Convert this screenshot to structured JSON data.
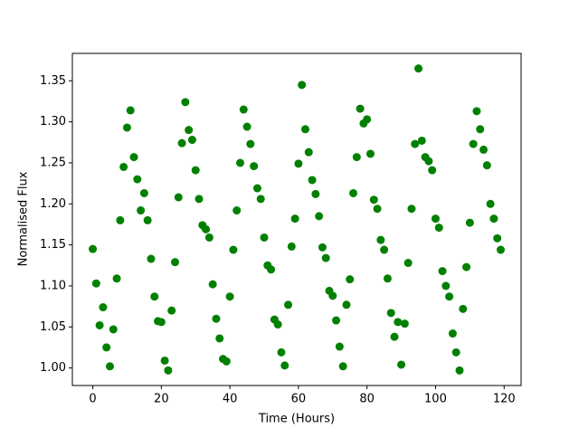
{
  "chart_data": {
    "type": "scatter",
    "xlabel": "Time (Hours)",
    "ylabel": "Normalised Flux",
    "x": [
      0,
      1,
      2,
      3,
      4,
      5,
      6,
      7,
      8,
      9,
      10,
      11,
      12,
      13,
      14,
      15,
      16,
      17,
      18,
      19,
      20,
      21,
      22,
      23,
      24,
      25,
      26,
      27,
      28,
      29,
      30,
      31,
      32,
      33,
      34,
      35,
      36,
      37,
      38,
      39,
      40,
      41,
      42,
      43,
      44,
      45,
      46,
      47,
      48,
      49,
      50,
      51,
      52,
      53,
      54,
      55,
      56,
      57,
      58,
      59,
      60,
      61,
      62,
      63,
      64,
      65,
      66,
      67,
      68,
      69,
      70,
      71,
      72,
      73,
      74,
      75,
      76,
      77,
      78,
      79,
      80,
      81,
      82,
      83,
      84,
      85,
      86,
      87,
      88,
      89,
      90,
      91,
      92,
      93,
      94,
      95,
      96,
      97,
      98,
      99,
      100,
      101,
      102,
      103,
      104,
      105,
      106,
      107,
      108,
      109,
      110,
      111,
      112,
      113,
      114,
      115,
      116,
      117,
      118,
      119
    ],
    "values": [
      1.145,
      1.103,
      1.052,
      1.074,
      1.025,
      1.002,
      1.047,
      1.109,
      1.18,
      1.245,
      1.293,
      1.314,
      1.257,
      1.23,
      1.192,
      1.213,
      1.18,
      1.133,
      1.087,
      1.057,
      1.056,
      1.009,
      0.997,
      1.07,
      1.129,
      1.208,
      1.274,
      1.324,
      1.29,
      1.278,
      1.241,
      1.206,
      1.174,
      1.169,
      1.159,
      1.102,
      1.06,
      1.036,
      1.011,
      1.008,
      1.087,
      1.144,
      1.192,
      1.25,
      1.315,
      1.294,
      1.273,
      1.246,
      1.219,
      1.206,
      1.159,
      1.125,
      1.12,
      1.059,
      1.053,
      1.019,
      1.003,
      1.077,
      1.148,
      1.182,
      1.249,
      1.345,
      1.291,
      1.263,
      1.229,
      1.212,
      1.185,
      1.147,
      1.134,
      1.094,
      1.088,
      1.058,
      1.026,
      1.002,
      1.077,
      1.108,
      1.213,
      1.257,
      1.316,
      1.298,
      1.303,
      1.261,
      1.205,
      1.194,
      1.156,
      1.144,
      1.109,
      1.067,
      1.038,
      1.056,
      1.004,
      1.054,
      1.128,
      1.194,
      1.273,
      1.365,
      1.277,
      1.257,
      1.252,
      1.241,
      1.182,
      1.171,
      1.118,
      1.1,
      1.087,
      1.042,
      1.019,
      0.997,
      1.072,
      1.123,
      1.177,
      1.273,
      1.313,
      1.291,
      1.266,
      1.247,
      1.2,
      1.182,
      1.158,
      1.144
    ],
    "color": "#008000",
    "xlim": [
      -5.95,
      124.95
    ],
    "ylim": [
      0.9786,
      1.3834
    ],
    "xticks": [
      0,
      20,
      40,
      60,
      80,
      100,
      120
    ],
    "yticks": [
      {
        "value": 1,
        "label": "1.00"
      },
      1.05,
      {
        "value": 1.1,
        "label": "1.10"
      },
      1.15,
      {
        "value": 1.2,
        "label": "1.20"
      },
      1.25,
      {
        "value": 1.3,
        "label": "1.30"
      },
      1.35
    ],
    "grid": false
  }
}
